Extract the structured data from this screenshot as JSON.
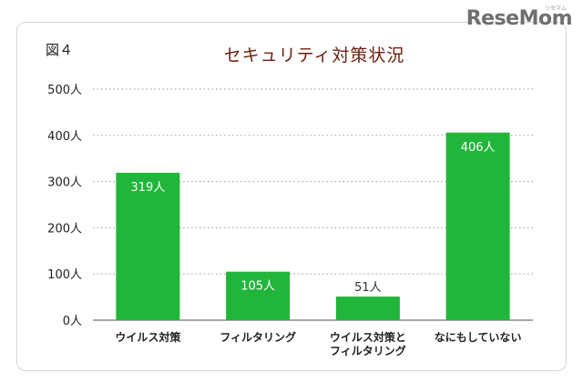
{
  "figure_label": "図４",
  "logo": {
    "text": "ReseMom",
    "sub": "リセマム"
  },
  "chart_data": {
    "type": "bar",
    "title": "セキュリティ対策状況",
    "categories": [
      [
        "ウイルス対策"
      ],
      [
        "フィルタリング"
      ],
      [
        "ウイルス対策と",
        "フィルタリング"
      ],
      [
        "なにもしていない"
      ]
    ],
    "values": [
      319,
      105,
      51,
      406
    ],
    "data_labels": [
      "319人",
      "105人",
      "51人",
      "406人"
    ],
    "label_inside": [
      true,
      true,
      false,
      true
    ],
    "ylim": [
      0,
      500
    ],
    "yticks": [
      0,
      100,
      200,
      300,
      400,
      500
    ],
    "ytick_labels": [
      "0人",
      "100人",
      "200人",
      "300人",
      "400人",
      "500人"
    ],
    "grid": true,
    "bar_color": "#22b53c",
    "label_color_inside": "#ffffff",
    "label_color_outside": "#333333",
    "grid_color": "#aaaaaa"
  }
}
